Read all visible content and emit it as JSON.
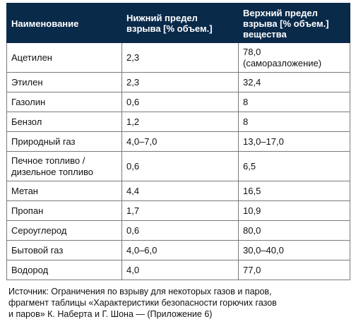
{
  "header": {
    "col1": "Наименование",
    "col2": "Нижний предел\nвзрыва [% объем.]",
    "col3": "Верхний предел\nвзрыва [% объем.]\nвещества"
  },
  "rows": [
    {
      "name": "Ацетилен",
      "lower": "2,3",
      "upper": "78,0\n(саморазложение)"
    },
    {
      "name": "Этилен",
      "lower": "2,3",
      "upper": "32,4"
    },
    {
      "name": "Газолин",
      "lower": "0,6",
      "upper": "8"
    },
    {
      "name": "Бензол",
      "lower": "1,2",
      "upper": "8"
    },
    {
      "name": "Природный газ",
      "lower": "4,0–7,0",
      "upper": "13,0–17,0"
    },
    {
      "name": "Печное топливо /\nдизельное топливо",
      "lower": "0,6",
      "upper": "6,5"
    },
    {
      "name": "Метан",
      "lower": "4,4",
      "upper": "16,5"
    },
    {
      "name": "Пропан",
      "lower": "1,7",
      "upper": "10,9"
    },
    {
      "name": "Сероуглерод",
      "lower": "0,6",
      "upper": "80,0"
    },
    {
      "name": "Бытовой газ",
      "lower": "4,0–6,0",
      "upper": "30,0–40,0"
    },
    {
      "name": "Водород",
      "lower": "4,0",
      "upper": "77,0"
    }
  ],
  "source": "Источник: Ограничения по взрыву для некоторых газов и паров,\nфрагмент таблицы «Характеристики безопасности горючих газов\nи паров» К. Наберта и Г. Шона — (Приложение 6)",
  "colors": {
    "header_bg": "#0a2a4a",
    "border": "#7a7a7a"
  }
}
